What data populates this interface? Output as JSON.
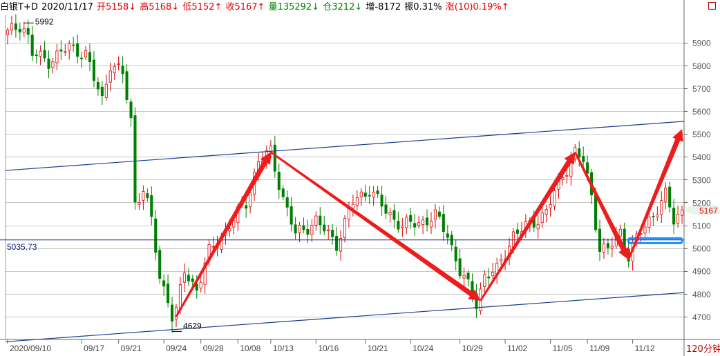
{
  "header": {
    "symbol": "白银T+D",
    "date": "2020/11/17",
    "open": "开5158↓",
    "high": "高5168↓",
    "low": "低5152↑",
    "close": "收5167↑",
    "volume": "量135292↓",
    "position": "仓3212↓",
    "increase": "增-8172",
    "amplitude": "振0.31%",
    "change": "涨(10)0.19%↑"
  },
  "colors": {
    "up": "#e00000",
    "down": "#008000",
    "trendline": "#1a3d8c",
    "arrow": "#ee1c1c",
    "highlight_box": "#1e90ff",
    "axis_text": "#555555",
    "header_red": "#e00000",
    "header_green": "#008000"
  },
  "chart_data": {
    "type": "candlestick",
    "timeframe_label": "120分钟",
    "ylim": [
      4600,
      6020
    ],
    "yticks": [
      4700,
      4800,
      4900,
      5000,
      5100,
      5200,
      5300,
      5400,
      5500,
      5600,
      5700,
      5800,
      5900
    ],
    "x_tick_labels": [
      "2020/09/10",
      "09/17",
      "09/21",
      "09/24",
      "09/28",
      "10/08",
      "10/13",
      "10/16",
      "10/21",
      "10/24",
      "10/29",
      "11/02",
      "11/05",
      "11/09",
      "11/12"
    ],
    "x_tick_index": [
      0,
      18,
      27,
      38,
      47,
      56,
      64,
      75,
      87,
      98,
      110,
      121,
      132,
      141,
      152
    ],
    "bars_count": 165,
    "last_price": "5167",
    "horizontal_line": {
      "value": 5035.73,
      "label": "5035.73"
    },
    "annotations": [
      {
        "label": "5992",
        "index": 4,
        "value": 5992
      },
      {
        "label": "4629",
        "index": 40,
        "value": 4629
      }
    ],
    "channel_lines": [
      {
        "start": [
          0,
          5340
        ],
        "end": [
          164,
          5555
        ]
      },
      {
        "start": [
          0,
          4590
        ],
        "end": [
          164,
          4805
        ]
      }
    ],
    "arrows": [
      {
        "from": [
          41,
          4700
        ],
        "to": [
          64,
          5420
        ]
      },
      {
        "from": [
          64,
          5420
        ],
        "to": [
          115,
          4770
        ]
      },
      {
        "from": [
          115,
          4770
        ],
        "to": [
          138,
          5420
        ]
      },
      {
        "from": [
          138,
          5420
        ],
        "to": [
          151,
          4950
        ]
      },
      {
        "from": [
          151,
          4950
        ],
        "to": [
          164,
          5520
        ]
      }
    ],
    "highlight_box": {
      "index_from": 151,
      "index_to": 164,
      "value_low": 5022,
      "value_high": 5043
    },
    "key_points": [
      [
        0,
        5940
      ],
      [
        4,
        5992
      ],
      [
        6,
        5850
      ],
      [
        10,
        5820
      ],
      [
        15,
        5880
      ],
      [
        19,
        5850
      ],
      [
        21,
        5740
      ],
      [
        23,
        5650
      ],
      [
        25,
        5810
      ],
      [
        28,
        5760
      ],
      [
        30,
        5560
      ],
      [
        31,
        5200
      ],
      [
        33,
        5260
      ],
      [
        35,
        5120
      ],
      [
        37,
        4870
      ],
      [
        39,
        4780
      ],
      [
        40,
        4629
      ],
      [
        43,
        4900
      ],
      [
        46,
        4820
      ],
      [
        49,
        4980
      ],
      [
        54,
        5100
      ],
      [
        58,
        5200
      ],
      [
        61,
        5380
      ],
      [
        64,
        5420
      ],
      [
        67,
        5220
      ],
      [
        70,
        5060
      ],
      [
        75,
        5120
      ],
      [
        80,
        5020
      ],
      [
        84,
        5200
      ],
      [
        88,
        5260
      ],
      [
        92,
        5160
      ],
      [
        96,
        5100
      ],
      [
        100,
        5110
      ],
      [
        104,
        5140
      ],
      [
        107,
        5060
      ],
      [
        110,
        4900
      ],
      [
        114,
        4760
      ],
      [
        116,
        4880
      ],
      [
        119,
        4900
      ],
      [
        123,
        5060
      ],
      [
        127,
        5100
      ],
      [
        131,
        5160
      ],
      [
        135,
        5320
      ],
      [
        138,
        5420
      ],
      [
        140,
        5380
      ],
      [
        142,
        5230
      ],
      [
        144,
        5000
      ],
      [
        146,
        4990
      ],
      [
        149,
        5070
      ],
      [
        151,
        4970
      ],
      [
        154,
        5070
      ],
      [
        157,
        5150
      ],
      [
        160,
        5230
      ],
      [
        162,
        5120
      ],
      [
        164,
        5167
      ]
    ]
  }
}
